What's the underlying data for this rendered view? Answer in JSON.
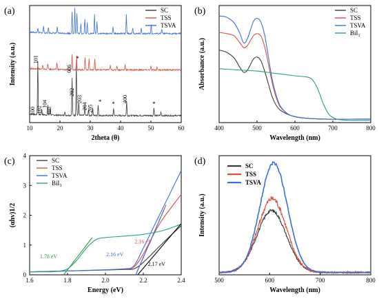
{
  "colors": {
    "SC": "#3a3a3a",
    "TSS": "#d94f43",
    "TSVA": "#3b6fd6",
    "BiI3": "#2a9d8a",
    "fit_green": "#2ca02c",
    "fit_black": "#000000"
  },
  "chart_data": [
    {
      "type": "line",
      "panel": "(a)",
      "xlabel": "2theta (θ)",
      "ylabel": "Intensity (a.u.)",
      "xlim": [
        10,
        60
      ],
      "xticks": [
        "10",
        "20",
        "30",
        "40",
        "50",
        "60"
      ],
      "legend_placement": "top-right",
      "series": [
        {
          "name": "SC",
          "offset": 0.06,
          "peaks": [
            [
              12.7,
              0.46
            ],
            [
              14.0,
              0.05
            ],
            [
              16.0,
              0.08
            ],
            [
              16.8,
              0.06
            ],
            [
              21.6,
              0.03
            ],
            [
              24.0,
              0.32
            ],
            [
              25.4,
              0.46
            ],
            [
              26.2,
              0.12
            ],
            [
              28.2,
              0.08
            ],
            [
              29.4,
              0.05
            ],
            [
              30.8,
              0.07
            ],
            [
              32.6,
              0.09
            ],
            [
              37.7,
              0.06
            ],
            [
              42.0,
              0.12
            ],
            [
              51.0,
              0.07
            ],
            [
              53.3,
              0.03
            ]
          ]
        },
        {
          "name": "TSS",
          "offset": 0.45,
          "peaks": [
            [
              12.7,
              0.03
            ],
            [
              14.3,
              0.03
            ],
            [
              16.0,
              0.05
            ],
            [
              19.0,
              0.06
            ],
            [
              24.0,
              0.13
            ],
            [
              25.5,
              0.12
            ],
            [
              28.3,
              0.11
            ],
            [
              29.6,
              0.09
            ],
            [
              31.5,
              0.1
            ],
            [
              36.6,
              0.04
            ],
            [
              38.8,
              0.04
            ],
            [
              41.5,
              0.05
            ],
            [
              50.0,
              0.03
            ],
            [
              52.0,
              0.03
            ]
          ]
        },
        {
          "name": "TSVA",
          "offset": 0.76,
          "peaks": [
            [
              12.7,
              0.04
            ],
            [
              14.6,
              0.06
            ],
            [
              16.2,
              0.05
            ],
            [
              19.1,
              0.05
            ],
            [
              24.0,
              0.18
            ],
            [
              24.9,
              0.22
            ],
            [
              25.6,
              0.17
            ],
            [
              26.9,
              0.08
            ],
            [
              28.2,
              0.13
            ],
            [
              29.0,
              0.09
            ],
            [
              31.4,
              0.16
            ],
            [
              32.2,
              0.1
            ],
            [
              37.5,
              0.06
            ],
            [
              41.9,
              0.16
            ],
            [
              44.0,
              0.05
            ],
            [
              46.8,
              0.05
            ],
            [
              50.1,
              0.08
            ],
            [
              53.6,
              0.04
            ]
          ]
        }
      ],
      "annotations": [
        {
          "text": "100",
          "x": 11.6,
          "y": 0.1
        },
        {
          "text": "101",
          "x": 12.6,
          "y": 0.54
        },
        {
          "text": "102",
          "x": 13.8,
          "y": 0.11
        },
        {
          "text": "104",
          "x": 15.6,
          "y": 0.16
        },
        {
          "text": "103",
          "x": 17.0,
          "y": 0.1
        },
        {
          "text": "006",
          "x": 23.6,
          "y": 0.46
        },
        {
          "text": "202",
          "x": 24.6,
          "y": 0.26
        },
        {
          "text": "203",
          "x": 27.0,
          "y": 0.2
        },
        {
          "text": "204",
          "x": 28.8,
          "y": 0.14
        },
        {
          "text": "205",
          "x": 30.6,
          "y": 0.12
        },
        {
          "text": "400",
          "x": 42.1,
          "y": 0.2
        },
        {
          "text": "*",
          "x": 25.8,
          "y": 0.53
        },
        {
          "text": "*",
          "x": 33.2,
          "y": 0.16
        },
        {
          "text": "*",
          "x": 37.6,
          "y": 0.14
        },
        {
          "text": "*",
          "x": 51.0,
          "y": 0.14
        }
      ]
    },
    {
      "type": "line",
      "panel": "(b)",
      "xlabel": "Wavelength (nm)",
      "ylabel": "Absorbance (a.u.)",
      "xlim": [
        400,
        800
      ],
      "ylim": [
        0,
        1
      ],
      "xticks": [
        "400",
        "500",
        "600",
        "700",
        "800"
      ],
      "legend_placement": "top-right",
      "series": [
        {
          "name": "SC",
          "x": [
            400,
            420,
            440,
            455,
            465,
            475,
            490,
            500,
            510,
            520,
            530,
            540,
            550,
            560,
            575,
            590,
            620,
            680,
            800
          ],
          "values": [
            0.62,
            0.6,
            0.55,
            0.47,
            0.43,
            0.45,
            0.54,
            0.56,
            0.53,
            0.44,
            0.33,
            0.22,
            0.15,
            0.11,
            0.08,
            0.06,
            0.04,
            0.03,
            0.03
          ]
        },
        {
          "name": "TSS",
          "x": [
            400,
            420,
            440,
            455,
            465,
            475,
            490,
            500,
            510,
            520,
            530,
            540,
            550,
            560,
            575,
            590,
            620,
            680,
            800
          ],
          "values": [
            0.77,
            0.76,
            0.74,
            0.68,
            0.64,
            0.66,
            0.74,
            0.76,
            0.74,
            0.65,
            0.5,
            0.34,
            0.22,
            0.14,
            0.09,
            0.06,
            0.04,
            0.03,
            0.03
          ]
        },
        {
          "name": "TSVA",
          "x": [
            400,
            420,
            440,
            455,
            465,
            475,
            490,
            500,
            510,
            520,
            530,
            540,
            550,
            560,
            575,
            590,
            620,
            680,
            800
          ],
          "values": [
            0.91,
            0.9,
            0.85,
            0.76,
            0.68,
            0.72,
            0.86,
            0.89,
            0.86,
            0.75,
            0.56,
            0.37,
            0.24,
            0.15,
            0.09,
            0.06,
            0.04,
            0.03,
            0.03
          ]
        },
        {
          "name": "BiI₃",
          "x": [
            400,
            450,
            500,
            550,
            600,
            630,
            645,
            660,
            675,
            690,
            710,
            740,
            800
          ],
          "values": [
            0.46,
            0.45,
            0.44,
            0.42,
            0.4,
            0.39,
            0.37,
            0.29,
            0.16,
            0.07,
            0.03,
            0.02,
            0.02
          ]
        }
      ]
    },
    {
      "type": "line",
      "panel": "(c)",
      "xlabel": "Energy (eV)",
      "ylabel": "(αhv)1/2",
      "xlim": [
        1.6,
        2.4
      ],
      "ylim": [
        0,
        4
      ],
      "xticks": [
        "1.6",
        "1.8",
        "2.0",
        "2.2",
        "2.4"
      ],
      "yticks": [
        "0",
        "1",
        "2",
        "3",
        "4"
      ],
      "legend_placement": "top-left",
      "series": [
        {
          "name": "SC",
          "x": [
            1.6,
            1.8,
            2.0,
            2.1,
            2.15,
            2.2,
            2.3,
            2.4
          ],
          "values": [
            0.1,
            0.13,
            0.16,
            0.18,
            0.2,
            0.42,
            1.05,
            1.65
          ]
        },
        {
          "name": "TSS",
          "x": [
            1.6,
            1.8,
            2.0,
            2.1,
            2.15,
            2.2,
            2.25,
            2.3,
            2.4
          ],
          "values": [
            0.1,
            0.13,
            0.17,
            0.2,
            0.26,
            0.7,
            1.3,
            1.85,
            2.7
          ]
        },
        {
          "name": "TSVA",
          "x": [
            1.6,
            1.8,
            2.0,
            2.1,
            2.15,
            2.2,
            2.25,
            2.3,
            2.35,
            2.4
          ],
          "values": [
            0.1,
            0.13,
            0.17,
            0.2,
            0.3,
            0.9,
            1.55,
            2.2,
            2.85,
            3.5
          ]
        },
        {
          "name": "BiI₃",
          "x": [
            1.6,
            1.7,
            1.75,
            1.8,
            1.85,
            1.9,
            1.95,
            2.0,
            2.1,
            2.2,
            2.3,
            2.4
          ],
          "values": [
            0.1,
            0.1,
            0.12,
            0.2,
            0.5,
            0.9,
            1.18,
            1.25,
            1.3,
            1.36,
            1.48,
            1.7
          ]
        }
      ],
      "fits": [
        {
          "color": "fit_green",
          "x": [
            1.78,
            1.93
          ],
          "values": [
            0.0,
            1.25
          ]
        },
        {
          "color": "TSS",
          "x": [
            2.16,
            2.32
          ],
          "values": [
            0.0,
            2.35
          ]
        },
        {
          "color": "TSVA",
          "x": [
            2.16,
            2.31
          ],
          "values": [
            0.0,
            2.2
          ]
        },
        {
          "color": "fit_black",
          "x": [
            2.17,
            2.4
          ],
          "values": [
            0.0,
            1.72
          ]
        }
      ],
      "annotations": [
        {
          "text": "1.78 eV",
          "x": 1.7,
          "y": 0.55,
          "color": "fit_green"
        },
        {
          "text": "2.16 eV",
          "x": 2.2,
          "y": 1.05,
          "color": "TSS"
        },
        {
          "text": "2.16 eV",
          "x": 2.05,
          "y": 0.62,
          "color": "TSVA"
        },
        {
          "text": "2.17 eV",
          "x": 2.27,
          "y": 0.3,
          "color": "fit_black"
        }
      ]
    },
    {
      "type": "line",
      "panel": "(d)",
      "xlabel": "Wavelength (nm)",
      "ylabel": "Intensity (a.u.)",
      "xlim": [
        500,
        800
      ],
      "ylim": [
        0,
        1
      ],
      "xticks": [
        "500",
        "600",
        "700",
        "800"
      ],
      "legend_placement": "top-left",
      "series": [
        {
          "name": "SC",
          "center": 604,
          "sigma": 34,
          "amp": 0.52
        },
        {
          "name": "TSS",
          "center": 605,
          "sigma": 33,
          "amp": 0.62
        },
        {
          "name": "TSVA",
          "center": 608,
          "sigma": 32,
          "amp": 0.92
        }
      ]
    }
  ]
}
